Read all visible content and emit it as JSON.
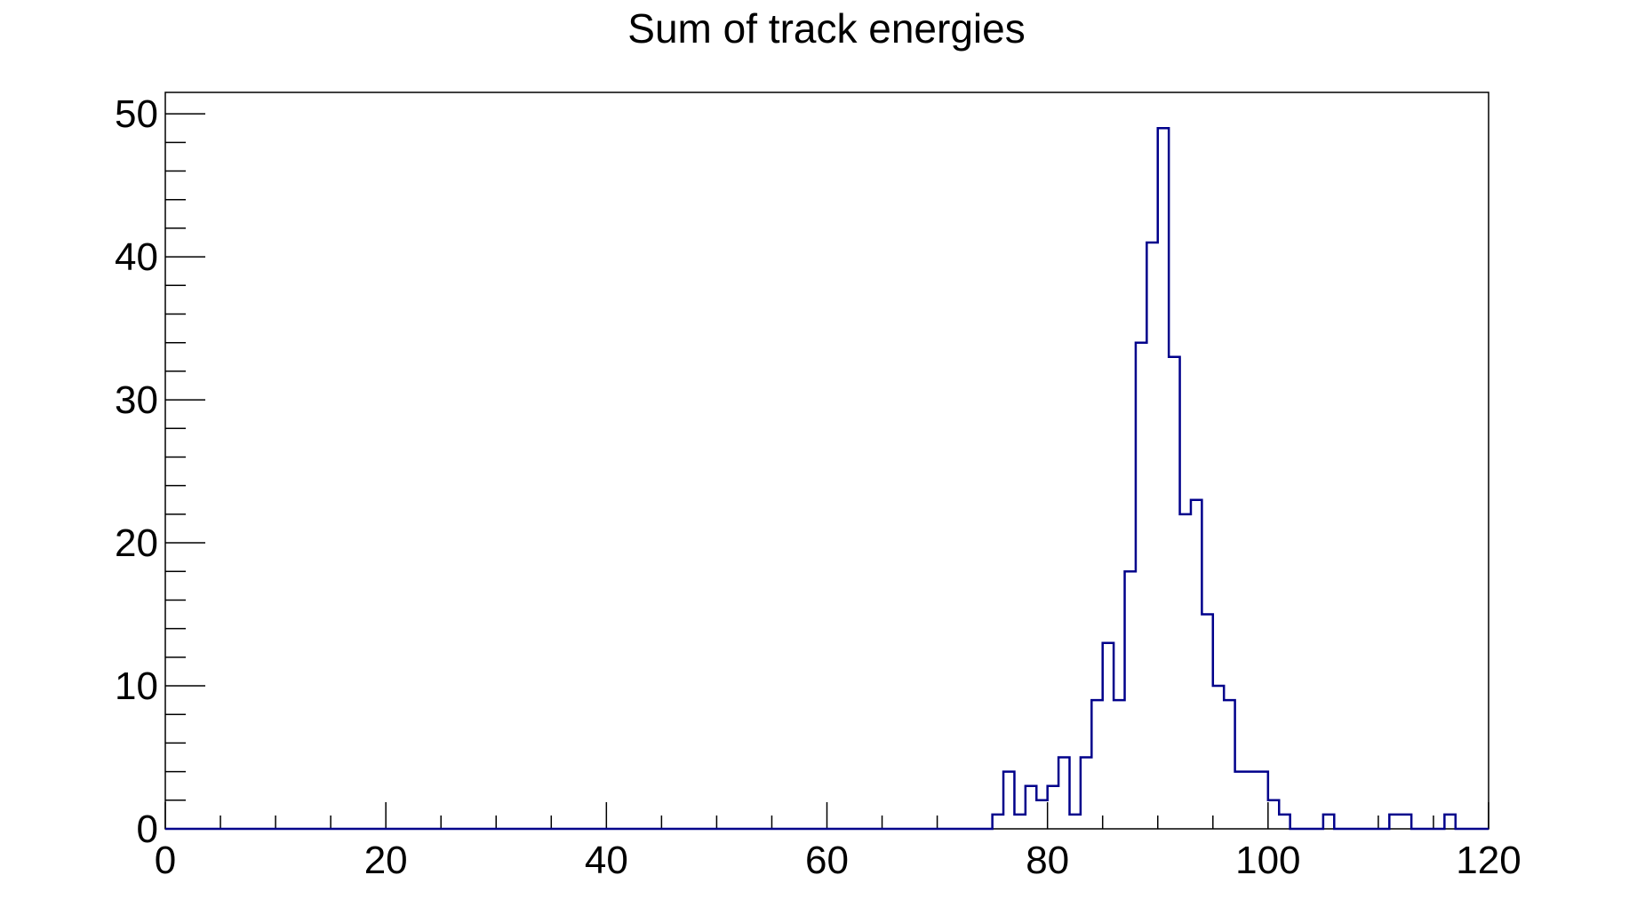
{
  "chart_data": {
    "type": "histogram",
    "title": "Sum of track energies",
    "xlabel": "",
    "ylabel": "",
    "xlim": [
      0,
      120
    ],
    "ylim": [
      0,
      51.5
    ],
    "x_ticks": [
      0,
      20,
      40,
      60,
      80,
      100,
      120
    ],
    "y_ticks": [
      0,
      10,
      20,
      30,
      40,
      50
    ],
    "x_tick_labels": [
      "0",
      "20",
      "40",
      "60",
      "80",
      "100",
      "120"
    ],
    "y_tick_labels": [
      "0",
      "10",
      "20",
      "30",
      "40",
      "50"
    ],
    "bin_width": 1,
    "bins": [
      {
        "x": 75,
        "count": 1
      },
      {
        "x": 76,
        "count": 4
      },
      {
        "x": 77,
        "count": 1
      },
      {
        "x": 78,
        "count": 3
      },
      {
        "x": 79,
        "count": 2
      },
      {
        "x": 80,
        "count": 3
      },
      {
        "x": 81,
        "count": 5
      },
      {
        "x": 82,
        "count": 1
      },
      {
        "x": 83,
        "count": 5
      },
      {
        "x": 84,
        "count": 9
      },
      {
        "x": 85,
        "count": 13
      },
      {
        "x": 86,
        "count": 9
      },
      {
        "x": 87,
        "count": 18
      },
      {
        "x": 88,
        "count": 34
      },
      {
        "x": 89,
        "count": 41
      },
      {
        "x": 90,
        "count": 49
      },
      {
        "x": 91,
        "count": 33
      },
      {
        "x": 92,
        "count": 22
      },
      {
        "x": 93,
        "count": 23
      },
      {
        "x": 94,
        "count": 15
      },
      {
        "x": 95,
        "count": 10
      },
      {
        "x": 96,
        "count": 9
      },
      {
        "x": 97,
        "count": 4
      },
      {
        "x": 98,
        "count": 4
      },
      {
        "x": 99,
        "count": 4
      },
      {
        "x": 100,
        "count": 2
      },
      {
        "x": 101,
        "count": 1
      },
      {
        "x": 102,
        "count": 0
      },
      {
        "x": 103,
        "count": 0
      },
      {
        "x": 104,
        "count": 0
      },
      {
        "x": 105,
        "count": 1
      },
      {
        "x": 106,
        "count": 0
      },
      {
        "x": 107,
        "count": 0
      },
      {
        "x": 108,
        "count": 0
      },
      {
        "x": 109,
        "count": 0
      },
      {
        "x": 110,
        "count": 0
      },
      {
        "x": 111,
        "count": 1
      },
      {
        "x": 112,
        "count": 1
      },
      {
        "x": 113,
        "count": 0
      },
      {
        "x": 114,
        "count": 0
      },
      {
        "x": 115,
        "count": 0
      },
      {
        "x": 116,
        "count": 1
      }
    ],
    "colors": {
      "line": "#00008b",
      "frame": "#000000",
      "background": "#ffffff"
    },
    "grid": false,
    "legend": "none"
  }
}
